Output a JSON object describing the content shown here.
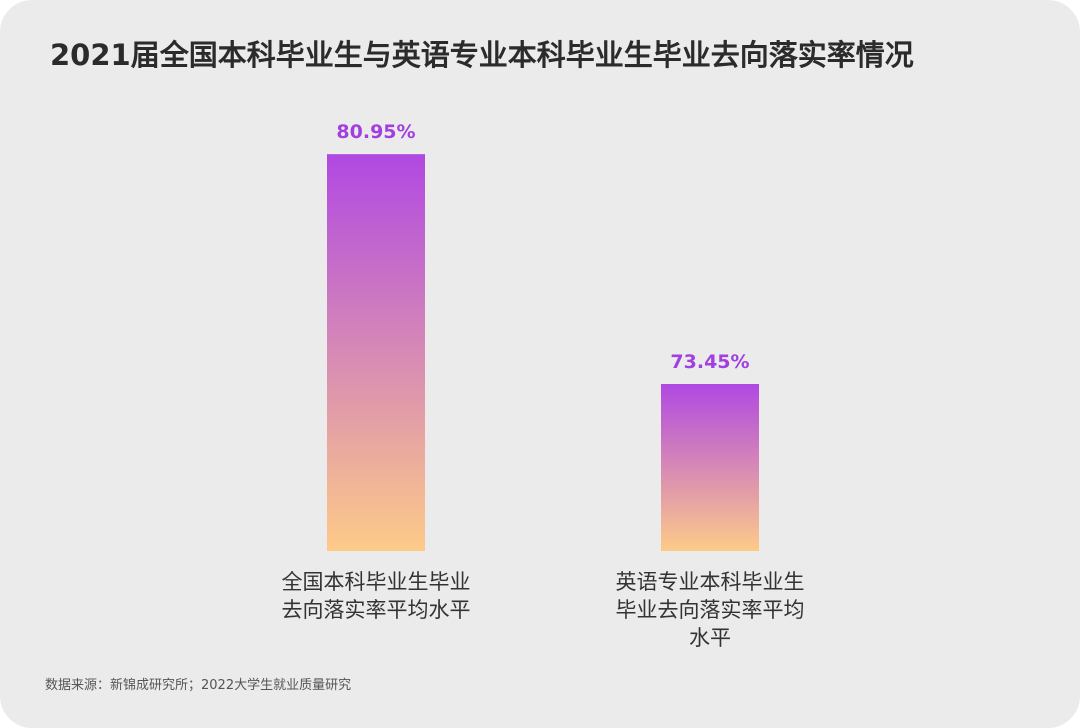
{
  "chart_data": {
    "type": "bar",
    "title": "2021届全国本科毕业生与英语专业本科毕业生毕业去向落实率情况",
    "categories": [
      "全国本科毕业生毕业去向落实率平均水平",
      "英语专业本科毕业生毕业去向落实率平均水平"
    ],
    "values": [
      80.95,
      73.45
    ],
    "value_labels": [
      "80.95%",
      "73.45%"
    ],
    "colors": [
      "#b048e2",
      "#fdcb88"
    ],
    "value_label_color": "#a23fe0",
    "ylim": [
      68,
      82
    ],
    "source": "数据来源：新锦成研究所；2022大学生就业质量研究"
  }
}
